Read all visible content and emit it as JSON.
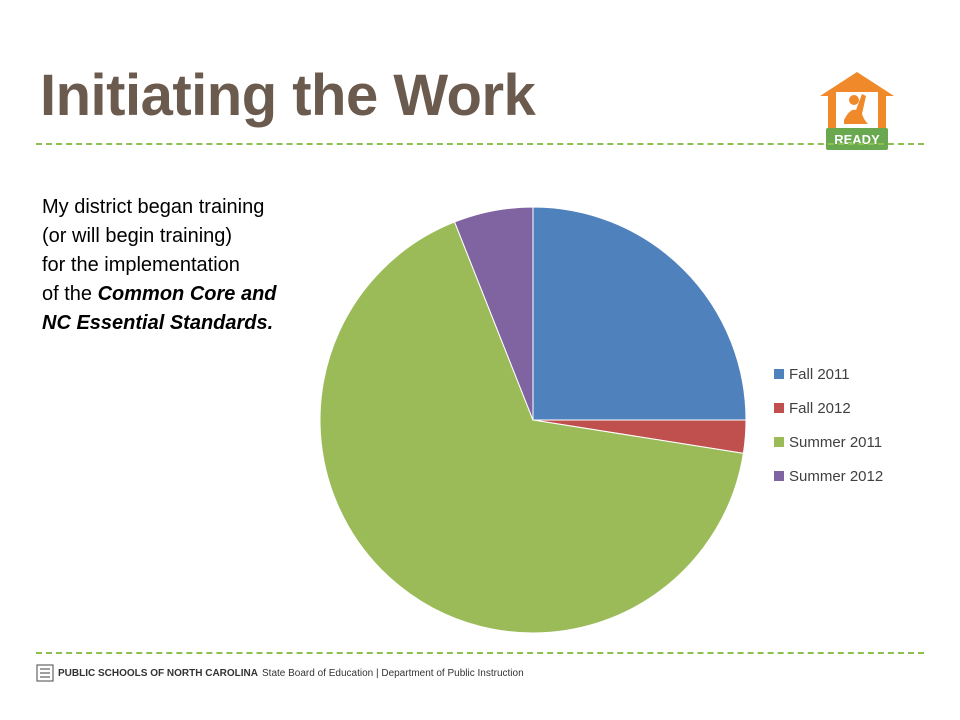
{
  "slide": {
    "title": "Initiating the Work",
    "body_lines": [
      "My district began training",
      "(or will begin training)",
      "for the implementation",
      "of the ",
      "Common Core and",
      "NC Essential Standards."
    ],
    "logo_text": "READY"
  },
  "footer": {
    "org": "PUBLIC SCHOOLS OF NORTH CAROLINA",
    "rest": "State Board of Education | Department of Public Instruction"
  },
  "colors": {
    "title": "#6b5b4e",
    "accent_rule": "#8cc152",
    "logo_orange": "#f0892a",
    "logo_green": "#6aa84f"
  },
  "chart_data": {
    "type": "pie",
    "categories": [
      "Fall 2011",
      "Fall 2012",
      "Summer 2011",
      "Summer 2012"
    ],
    "values": [
      25,
      2.5,
      66.5,
      6
    ],
    "colors": [
      "#4f81bd",
      "#c0504d",
      "#9bbb59",
      "#8064a2"
    ],
    "legend_position": "right"
  }
}
